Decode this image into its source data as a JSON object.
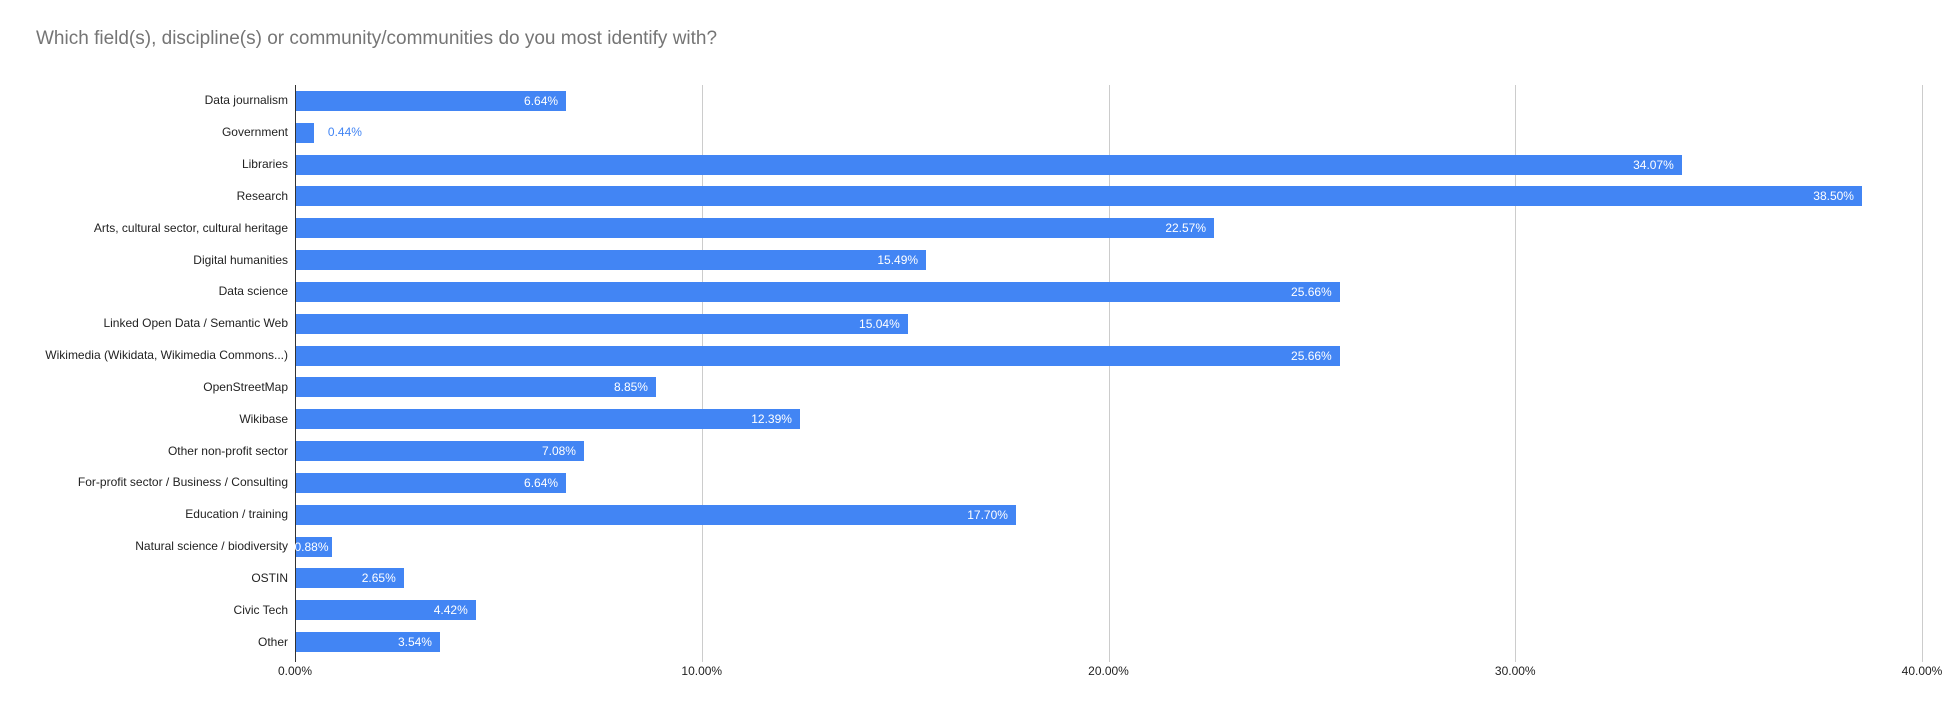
{
  "title": "Which field(s), discipline(s) or community/communities do you most identify with?",
  "colors": {
    "bar": "#4285f4",
    "title_text": "#757575",
    "category_text": "#222222",
    "tick_text": "#222222",
    "gridline": "#cccccc",
    "axis_line": "#333333",
    "annotation_inside": "#ffffff",
    "annotation_outside": "#4285f4",
    "background": "#ffffff"
  },
  "chart_data": {
    "type": "bar",
    "orientation": "horizontal",
    "title": "Which field(s), discipline(s) or community/communities do you most identify with?",
    "categories": [
      "Data journalism",
      "Government",
      "Libraries",
      "Research",
      "Arts, cultural sector, cultural heritage",
      "Digital humanities",
      "Data science",
      "Linked Open Data / Semantic Web",
      "Wikimedia (Wikidata, Wikimedia Commons...)",
      "OpenStreetMap",
      "Wikibase",
      "Other non-profit sector",
      "For-profit sector / Business / Consulting",
      "Education / training",
      "Natural science / biodiversity",
      "OSTIN",
      "Civic Tech",
      "Other"
    ],
    "values": [
      6.64,
      0.44,
      34.07,
      38.5,
      22.57,
      15.49,
      25.66,
      15.04,
      25.66,
      8.85,
      12.39,
      7.08,
      6.64,
      17.7,
      0.88,
      2.65,
      4.42,
      3.54
    ],
    "value_labels": [
      "6.64%",
      "0.44%",
      "34.07%",
      "38.50%",
      "22.57%",
      "15.49%",
      "25.66%",
      "15.04%",
      "25.66%",
      "8.85%",
      "12.39%",
      "7.08%",
      "6.64%",
      "17.70%",
      "0.88%",
      "2.65%",
      "4.42%",
      "3.54%"
    ],
    "xlabel": "",
    "ylabel": "",
    "xlim": [
      0,
      40
    ],
    "x_ticks": [
      "0.00%",
      "10.00%",
      "20.00%",
      "30.00%",
      "40.00%"
    ],
    "x_tick_values": [
      0,
      10,
      20,
      30,
      40
    ],
    "grid": true,
    "legend": "none"
  }
}
